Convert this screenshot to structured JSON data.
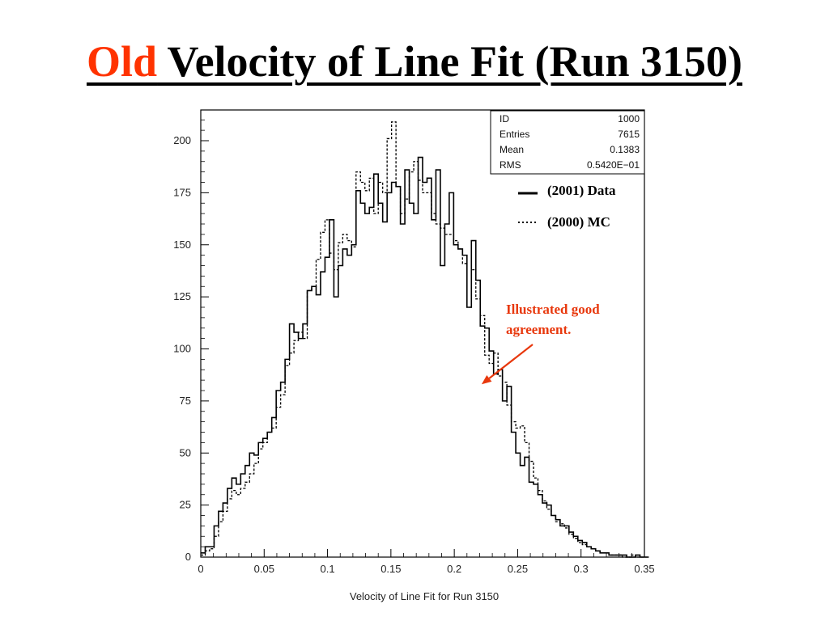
{
  "slide": {
    "title_accent": "Old",
    "title_rest": " Velocity of Line Fit (Run 3150)"
  },
  "chart_data": {
    "type": "histogram",
    "xlabel": "Velocity of Line Fit for Run 3150",
    "ylabel": "",
    "xlim": [
      0,
      0.35
    ],
    "ylim": [
      0,
      220
    ],
    "x_ticks": [
      "0",
      "0.05",
      "0.1",
      "0.15",
      "0.2",
      "0.25",
      "0.3",
      "0.35"
    ],
    "x_tick_values": [
      0,
      0.05,
      0.1,
      0.15,
      0.2,
      0.25,
      0.3,
      0.35
    ],
    "y_ticks": [
      "0",
      "25",
      "50",
      "75",
      "100",
      "125",
      "150",
      "175",
      "200"
    ],
    "y_tick_values": [
      0,
      25,
      50,
      75,
      100,
      125,
      150,
      175,
      200
    ],
    "bin_width": 0.0035,
    "bin_start": 0,
    "grid": false,
    "legend_position": "right",
    "colors": {
      "title_accent": "#ff3300",
      "annotation": "#e8380d",
      "line": "#000000"
    },
    "series": [
      {
        "name": "(2001) Data",
        "style": "solid",
        "values": [
          2,
          5,
          5,
          15,
          22,
          26,
          33,
          38,
          35,
          40,
          44,
          50,
          49,
          55,
          57,
          60,
          67,
          80,
          84,
          95,
          112,
          108,
          105,
          112,
          128,
          130,
          126,
          137,
          144,
          162,
          125,
          140,
          148,
          145,
          150,
          176,
          170,
          165,
          168,
          184,
          170,
          161,
          175,
          180,
          178,
          160,
          186,
          170,
          165,
          192,
          180,
          182,
          162,
          186,
          140,
          160,
          175,
          150,
          148,
          145,
          120,
          152,
          133,
          111,
          110,
          99,
          88,
          90,
          75,
          82,
          60,
          50,
          44,
          48,
          36,
          35,
          30,
          26,
          25,
          20,
          18,
          15,
          15,
          12,
          10,
          8,
          7,
          5,
          4,
          3,
          2,
          2,
          1,
          1,
          1,
          1,
          0,
          0,
          1,
          0,
          0
        ]
      },
      {
        "name": "(2000) MC",
        "style": "dotted",
        "values": [
          1,
          3,
          4,
          10,
          17,
          22,
          28,
          32,
          30,
          33,
          36,
          40,
          45,
          52,
          55,
          60,
          62,
          72,
          78,
          92,
          98,
          104,
          108,
          105,
          128,
          130,
          143,
          156,
          162,
          146,
          138,
          151,
          155,
          152,
          149,
          185,
          180,
          176,
          182,
          165,
          180,
          175,
          201,
          209,
          178,
          165,
          172,
          185,
          190,
          181,
          175,
          175,
          165,
          160,
          158,
          155,
          155,
          152,
          148,
          141,
          120,
          138,
          124,
          116,
          97,
          93,
          98,
          87,
          84,
          73,
          65,
          62,
          63,
          55,
          46,
          38,
          32,
          27,
          23,
          20,
          17,
          16,
          14,
          11,
          9,
          7,
          6,
          5,
          4,
          3,
          2,
          2,
          1,
          1,
          1,
          0,
          0,
          1,
          0,
          0,
          0
        ]
      }
    ],
    "stats_box": [
      {
        "label": "ID",
        "value": "1000"
      },
      {
        "label": "Entries",
        "value": "7615"
      },
      {
        "label": "Mean",
        "value": "0.1383"
      },
      {
        "label": "RMS",
        "value": "0.5420E−01"
      }
    ],
    "annotation": {
      "lines": [
        "Illustrated good",
        "agreement."
      ],
      "target_x": 0.219,
      "target_y": 83
    }
  }
}
